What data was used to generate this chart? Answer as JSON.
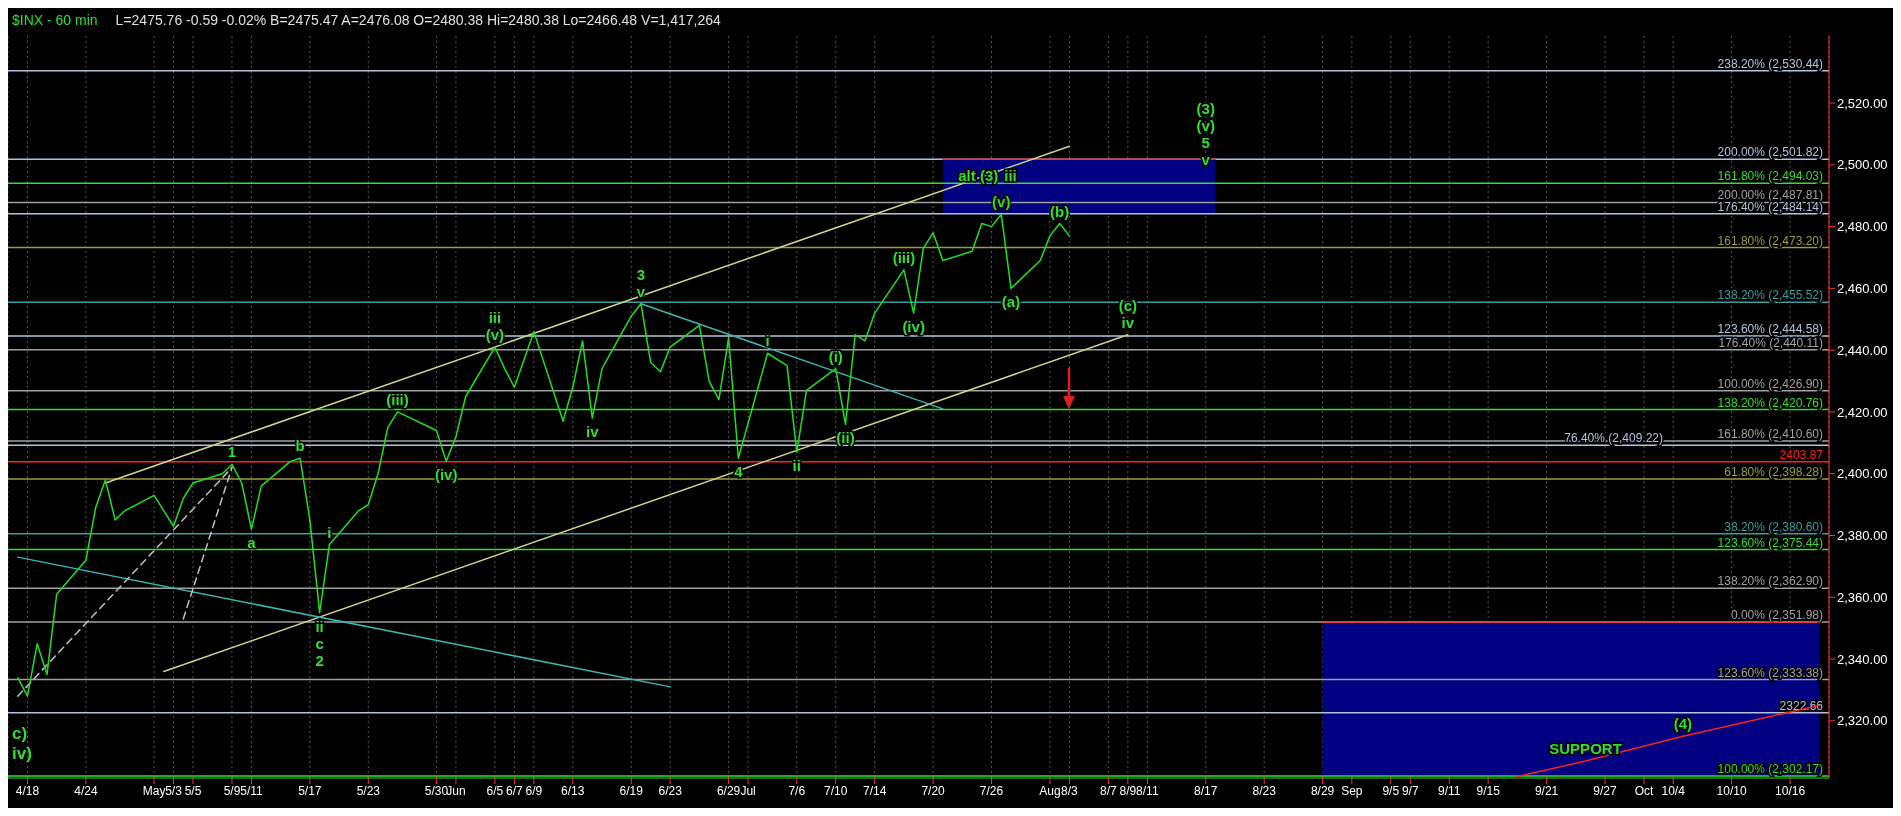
{
  "chart_data": {
    "type": "line",
    "title": "$INX - 60 min",
    "subtitle": "L=2475.76 -0.59 -0.02% B=2475.47 A=2476.08 O=2480.38 Hi=2480.38 Lo=2466.48 V=1,417,264",
    "series": [
      {
        "color": "#ff3030",
        "x": [
          "--07-21",
          "--08-18"
        ],
        "values": [
          2501.82,
          2501.82
        ],
        "lower": [
          2484.14,
          2484.14
        ],
        "upper": [
          2501.82,
          2501.82
        ]
      },
      {
        "color": "#ff3030",
        "x": [
          "--08-29",
          "--10-19"
        ],
        "values": [
          2351.98,
          2351.98
        ],
        "lower": [
          2302.17,
          2302.17
        ],
        "upper": [
          2351.98,
          2351.98
        ]
      },
      {
        "color": "#d2d28c",
        "x": [
          "--04-26",
          "--08-03"
        ],
        "values": [
          2397,
          2506
        ]
      },
      {
        "color": "#d2d28c",
        "x": [
          "--05-02",
          "--08-09"
        ],
        "values": [
          2336,
          2445
        ]
      },
      {
        "color": "#3cb4b4",
        "x": [
          "--04-17",
          "--06-23"
        ],
        "values": [
          2373,
          2331
        ]
      },
      {
        "color": "#3cb4b4",
        "x": [
          "--06-20",
          "--07-21"
        ],
        "values": [
          2455,
          2421
        ]
      },
      {
        "color": "#ff2020",
        "x": [
          "--09-18",
          "--09-25",
          "--10-05",
          "--10-19"
        ],
        "values": [
          2302,
          2307,
          2315,
          2325
        ]
      },
      {
        "color": "#c0c0c0",
        "line_style": "dashed",
        "x": [
          "--04-17",
          "--05-09"
        ],
        "values": [
          2328,
          2402
        ]
      },
      {
        "color": "#c0c0c0",
        "line_style": "dashed",
        "x": [
          "--05-04",
          "--05-09"
        ],
        "values": [
          2353,
          2402
        ]
      },
      {
        "color": "#22dd22",
        "x": [
          "--04-17",
          "--04-18",
          "--04-19",
          "--04-20",
          "--04-21",
          "--04-24",
          "--04-25",
          "--04-26",
          "--04-27",
          "--04-28",
          "--05-01",
          "--05-02",
          "--05-03",
          "--05-04",
          "--05-05",
          "--05-08",
          "--05-09",
          "--05-10",
          "--05-11",
          "--05-12",
          "--05-15",
          "--05-16",
          "--05-17",
          "--05-18",
          "--05-19",
          "--05-22",
          "--05-23",
          "--05-24",
          "--05-25",
          "--05-26",
          "--05-30",
          "--05-31",
          "--06-01",
          "--06-02",
          "--06-05",
          "--06-06",
          "--06-07",
          "--06-08",
          "--06-09",
          "--06-12",
          "--06-13",
          "--06-14",
          "--06-15",
          "--06-16",
          "--06-19",
          "--06-20",
          "--06-21",
          "--06-22",
          "--06-23",
          "--06-26",
          "--06-27",
          "--06-28",
          "--06-29",
          "--06-30",
          "--07-03",
          "--07-05",
          "--07-06",
          "--07-07",
          "--07-10",
          "--07-11",
          "--07-12",
          "--07-13",
          "--07-14",
          "--07-17",
          "--07-18",
          "--07-19",
          "--07-20",
          "--07-21",
          "--07-24",
          "--07-25",
          "--07-26",
          "--07-27",
          "--07-28",
          "--07-31",
          "--08-01",
          "--08-02",
          "--08-03"
        ],
        "values": [
          2334,
          2328,
          2345,
          2335,
          2361,
          2372,
          2389,
          2398,
          2385,
          2388,
          2393,
          2388,
          2383,
          2392,
          2397,
          2400,
          2403,
          2397,
          2382,
          2396,
          2404,
          2405,
          2385,
          2355,
          2377,
          2388,
          2390,
          2400,
          2415,
          2420,
          2414,
          2404,
          2412,
          2425,
          2441,
          2434,
          2428,
          2437,
          2446,
          2417,
          2428,
          2443,
          2418,
          2434,
          2451,
          2455,
          2436,
          2433,
          2441,
          2448,
          2430,
          2424,
          2444,
          2405,
          2439,
          2435,
          2407,
          2427,
          2434,
          2416,
          2445,
          2443,
          2452,
          2466,
          2452,
          2473,
          2478,
          2469,
          2472,
          2481,
          2480,
          2484,
          2460,
          2469,
          2477,
          2481,
          2477
        ]
      }
    ],
    "xlim": [
      "--04-16",
      "--10-20"
    ],
    "xticks": [
      {
        "value": "--04-18",
        "label": "4/18"
      },
      {
        "value": "--04-24",
        "label": "4/24"
      },
      {
        "value": "--05-01",
        "label": "May"
      },
      {
        "value": "--05-03",
        "label": "5/3"
      },
      {
        "value": "--05-05",
        "label": "5/5"
      },
      {
        "value": "--05-09",
        "label": "5/9"
      },
      {
        "value": "--05-11",
        "label": "5/11"
      },
      {
        "value": "--05-17",
        "label": "5/17"
      },
      {
        "value": "--05-23",
        "label": "5/23"
      },
      {
        "value": "--05-30",
        "label": "5/30"
      },
      {
        "value": "--06-01",
        "label": "Jun"
      },
      {
        "value": "--06-05",
        "label": "6/5"
      },
      {
        "value": "--06-07",
        "label": "6/7"
      },
      {
        "value": "--06-09",
        "label": "6/9"
      },
      {
        "value": "--06-13",
        "label": "6/13"
      },
      {
        "value": "--06-19",
        "label": "6/19"
      },
      {
        "value": "--06-23",
        "label": "6/23"
      },
      {
        "value": "--06-29",
        "label": "6/29"
      },
      {
        "value": "--07-01",
        "label": "Jul"
      },
      {
        "value": "--07-06",
        "label": "7/6"
      },
      {
        "value": "--07-10",
        "label": "7/10"
      },
      {
        "value": "--07-14",
        "label": "7/14"
      },
      {
        "value": "--07-20",
        "label": "7/20"
      },
      {
        "value": "--07-26",
        "label": "7/26"
      },
      {
        "value": "--08-01",
        "label": "Aug"
      },
      {
        "value": "--08-03",
        "label": "8/3"
      },
      {
        "value": "--08-07",
        "label": "8/7"
      },
      {
        "value": "--08-09",
        "label": "8/9"
      },
      {
        "value": "--08-11",
        "label": "8/11"
      },
      {
        "value": "--08-17",
        "label": "8/17"
      },
      {
        "value": "--08-23",
        "label": "8/23"
      },
      {
        "value": "--08-29",
        "label": "8/29"
      },
      {
        "value": "--09-01",
        "label": "Sep"
      },
      {
        "value": "--09-05",
        "label": "9/5"
      },
      {
        "value": "--09-07",
        "label": "9/7"
      },
      {
        "value": "--09-11",
        "label": "9/11"
      },
      {
        "value": "--09-15",
        "label": "9/15"
      },
      {
        "value": "--09-21",
        "label": "9/21"
      },
      {
        "value": "--09-27",
        "label": "9/27"
      },
      {
        "value": "--10-01",
        "label": "Oct"
      },
      {
        "value": "--10-04",
        "label": "10/4"
      },
      {
        "value": "--10-10",
        "label": "10/10"
      },
      {
        "value": "--10-16",
        "label": "10/16"
      }
    ],
    "ylim": [
      2301.5,
      2541.7
    ],
    "yticks": [
      {
        "value": 2320,
        "label": "2,320.00"
      },
      {
        "value": 2340,
        "label": "2,340.00"
      },
      {
        "value": 2360,
        "label": "2,360.00"
      },
      {
        "value": 2380,
        "label": "2,380.00"
      },
      {
        "value": 2400,
        "label": "2,400.00"
      },
      {
        "value": 2420,
        "label": "2,420.00"
      },
      {
        "value": 2440,
        "label": "2,440.00"
      },
      {
        "value": 2460,
        "label": "2,460.00"
      },
      {
        "value": 2480,
        "label": "2,480.00"
      },
      {
        "value": 2500,
        "label": "2,500.00"
      },
      {
        "value": 2520,
        "label": "2,520.00"
      }
    ],
    "grid": "x",
    "marker": "none",
    "line_style": "solid",
    "ref_lines": [
      {
        "axis": "y",
        "value": 2530.44,
        "label": "238.20% (2,530.44)",
        "color": "#b0c4de"
      },
      {
        "axis": "y",
        "value": 2501.82,
        "label": "200.00% (2,501.82)",
        "color": "#b0c4de"
      },
      {
        "axis": "y",
        "value": 2494.03,
        "label": "161.80% (2,494.03)",
        "color": "#33dd33"
      },
      {
        "axis": "y",
        "value": 2487.81,
        "label": "200.00% (2,487.81)",
        "color": "#a0a0a0"
      },
      {
        "axis": "y",
        "value": 2484.14,
        "label": "176.40% (2,484.14)",
        "color": "#b0c4de"
      },
      {
        "axis": "y",
        "value": 2473.2,
        "label": "161.80% (2,473.20)",
        "color": "#9c9c3c"
      },
      {
        "axis": "y",
        "value": 2455.52,
        "label": "138.20% (2,455.52)",
        "color": "#3c9c9c"
      },
      {
        "axis": "y",
        "value": 2444.58,
        "label": "123.60% (2,444.58)",
        "color": "#b0c4de"
      },
      {
        "axis": "y",
        "value": 2440.11,
        "label": "176.40% (2,440.11)",
        "color": "#a0a0a0"
      },
      {
        "axis": "y",
        "value": 2426.9,
        "label": "100.00% (2,426.90)",
        "color": "#a0a0a0"
      },
      {
        "axis": "y",
        "value": 2420.76,
        "label": "138.20% (2,420.76)",
        "color": "#33dd33"
      },
      {
        "axis": "y",
        "value": 2410.6,
        "label": "161.80% (2,410.60)",
        "color": "#a0a0a0"
      },
      {
        "axis": "y",
        "value": 2409.22,
        "label": "76.40% (2,409.22)",
        "color": "#b0c4de"
      },
      {
        "axis": "y",
        "value": 2403.87,
        "label": "2403.87",
        "color": "#ff2020"
      },
      {
        "axis": "y",
        "value": 2398.28,
        "label": "61.80% (2,398.28)",
        "color": "#9c9c3c"
      },
      {
        "axis": "y",
        "value": 2380.6,
        "label": "38.20% (2,380.60)",
        "color": "#3c9c9c"
      },
      {
        "axis": "y",
        "value": 2375.44,
        "label": "123.60% (2,375.44)",
        "color": "#33dd33"
      },
      {
        "axis": "y",
        "value": 2362.9,
        "label": "138.20% (2,362.90)",
        "color": "#a0a0a0"
      },
      {
        "axis": "y",
        "value": 2351.98,
        "label": "0.00% (2,351.98)",
        "color": "#a0a0a0"
      },
      {
        "axis": "y",
        "value": 2333.38,
        "label": "123.60% (2,333.38)",
        "color": "#a0a0a0"
      },
      {
        "axis": "y",
        "value": 2322.66,
        "label": "2322.66",
        "color": "#b0c4de"
      },
      {
        "axis": "y",
        "value": 2302.17,
        "label": "100.00% (2,302.17)",
        "color": "#33dd33"
      }
    ],
    "annotations": [
      "c)",
      "iv)",
      {
        "text": "1",
        "x": "--05-09",
        "y": 2403
      },
      {
        "text": "a",
        "x": "--05-11",
        "y": 2382
      },
      {
        "text": "b",
        "x": "--05-16",
        "y": 2405
      },
      {
        "text": "ii",
        "x": "--05-18",
        "y": 2355
      },
      {
        "text": "c",
        "x": "--05-18",
        "y": 2355
      },
      {
        "text": "2",
        "x": "--05-18",
        "y": 2355
      },
      {
        "text": "i",
        "x": "--05-19",
        "y": 2377
      },
      {
        "text": "(iii)",
        "x": "--05-26",
        "y": 2420
      },
      {
        "text": "(iv)",
        "x": "--05-31",
        "y": 2404
      },
      {
        "text": "iii",
        "x": "--06-05",
        "y": 2441
      },
      {
        "text": "(v)",
        "x": "--06-05",
        "y": 2441
      },
      {
        "text": "iv",
        "x": "--06-15",
        "y": 2418
      },
      {
        "text": "3",
        "x": "--06-20",
        "y": 2455
      },
      {
        "text": "v",
        "x": "--06-20",
        "y": 2455
      },
      {
        "text": "4",
        "x": "--06-30",
        "y": 2405
      },
      {
        "text": "i",
        "x": "--07-03",
        "y": 2439
      },
      {
        "text": "ii",
        "x": "--07-06",
        "y": 2407
      },
      {
        "text": "(i)",
        "x": "--07-10",
        "y": 2434
      },
      {
        "text": "(ii)",
        "x": "--07-11",
        "y": 2416
      },
      {
        "text": "(iii)",
        "x": "--07-17",
        "y": 2466
      },
      {
        "text": "(iv)",
        "x": "--07-18",
        "y": 2452
      },
      {
        "text": "alt (3)",
        "x": "--07-27",
        "y": 2484
      },
      {
        "text": "iii",
        "x": "--07-27",
        "y": 2484
      },
      {
        "text": "(v)",
        "x": "--07-27",
        "y": 2484
      },
      {
        "text": "(a)",
        "x": "--07-28",
        "y": 2460
      },
      {
        "text": "(b)",
        "x": "--08-02",
        "y": 2481
      },
      {
        "text": "(c)",
        "x": "--08-09",
        "y": 2445
      },
      {
        "text": "iv",
        "x": "--08-09",
        "y": 2445
      },
      {
        "text": "(3)",
        "x": "--08-17",
        "y": 2501.82
      },
      {
        "text": "(v)",
        "x": "--08-17",
        "y": 2501.82
      },
      {
        "text": "5",
        "x": "--08-17",
        "y": 2501.82
      },
      {
        "text": "v",
        "x": "--08-17",
        "y": 2501.82
      },
      {
        "text": "SUPPORT",
        "x": "--09-25",
        "y": 2307
      },
      {
        "text": "(4)",
        "x": "--10-05",
        "y": 2315
      }
    ]
  }
}
